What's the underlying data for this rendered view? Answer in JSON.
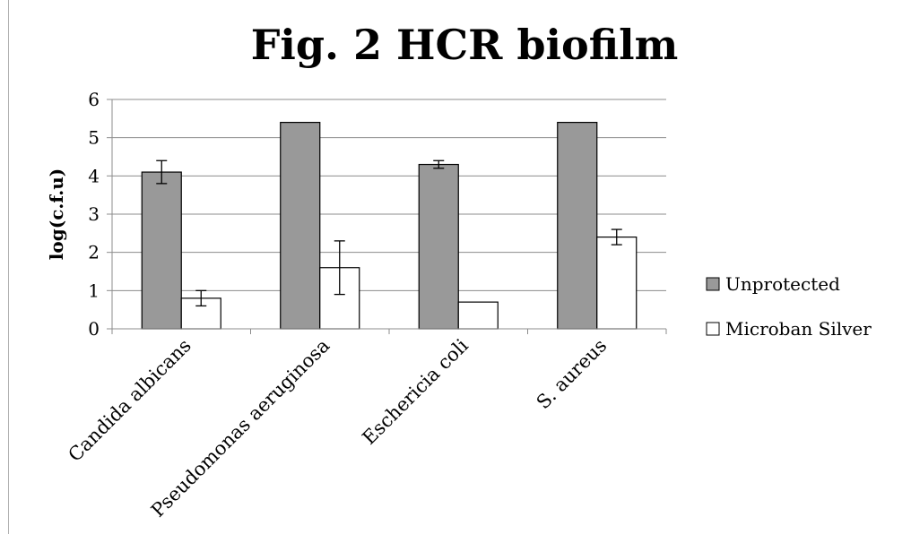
{
  "chart_data": {
    "type": "bar",
    "title": "Fig. 2  HCR biofilm",
    "xlabel": "",
    "ylabel": "log(c.f.u)",
    "ylim": [
      0,
      6
    ],
    "yticks": [
      0,
      1,
      2,
      3,
      4,
      5,
      6
    ],
    "grid": true,
    "legend_position": "right",
    "categories": [
      "Candida albicans",
      "Pseudomonas aeruginosa",
      "Eschericia coli",
      "S. aureus"
    ],
    "series": [
      {
        "name": "Unprotected",
        "color": "#999999",
        "values": [
          4.1,
          5.4,
          4.3,
          5.4
        ],
        "error": [
          0.3,
          null,
          0.1,
          null
        ]
      },
      {
        "name": "Microban Silver",
        "color": "#ffffff",
        "values": [
          0.8,
          1.6,
          0.7,
          2.4
        ],
        "error": [
          0.2,
          0.7,
          null,
          0.2
        ]
      }
    ]
  }
}
